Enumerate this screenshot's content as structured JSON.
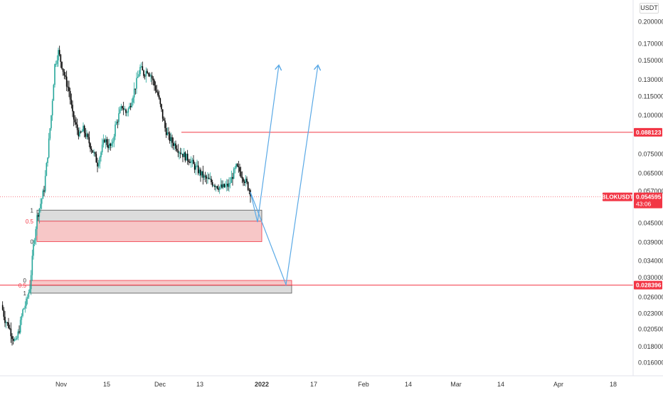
{
  "window": {
    "title": "BLOKUSDT"
  },
  "currency_label": "USDT",
  "symbol_label": "BLOKUSDT",
  "price_tag": {
    "value": "0.054595",
    "countdown": "43:06"
  },
  "level_tags": [
    {
      "value": "0.088123",
      "color": "#f23645"
    },
    {
      "value": "0.028396",
      "color": "#f23645"
    }
  ],
  "colors": {
    "up": "#26a69a",
    "down": "#000000",
    "level": "#f23645",
    "zone_red": "#f7c7c7",
    "zone_gray": "#dcdcdc",
    "arrow": "#5aa9e6"
  },
  "chart_data": {
    "type": "candlestick",
    "scale": "log",
    "y_ticks": [
      "0.200000",
      "0.170000",
      "0.150000",
      "0.130000",
      "0.115000",
      "0.100000",
      "0.075000",
      "0.065000",
      "0.057000",
      "0.045000",
      "0.039000",
      "0.034000",
      "0.030000",
      "0.026000",
      "0.023000",
      "0.020500",
      "0.018000",
      "0.016000"
    ],
    "x_ticks": [
      "Nov",
      "15",
      "Dec",
      "13",
      "2022",
      "17",
      "Feb",
      "14",
      "Mar",
      "14",
      "Apr",
      "18"
    ],
    "ylim": [
      0.0145,
      0.235
    ],
    "horizontal_levels": [
      0.088123,
      0.028396
    ],
    "current_price": 0.054595,
    "zones": [
      {
        "fib_labels": [
          "1",
          "0.5",
          "0"
        ],
        "top": 0.0495,
        "mid": 0.0456,
        "bottom": 0.0392
      },
      {
        "fib_labels": [
          "0",
          "0.5",
          "1"
        ],
        "top": 0.0294,
        "mid": 0.02835,
        "bottom": 0.02675
      }
    ],
    "close_path": [
      [
        0,
        0.0245
      ],
      [
        1,
        0.022
      ],
      [
        2,
        0.021
      ],
      [
        3,
        0.0195
      ],
      [
        4,
        0.0185
      ],
      [
        5,
        0.0205
      ],
      [
        6,
        0.0235
      ],
      [
        7,
        0.025
      ],
      [
        8,
        0.028
      ],
      [
        9,
        0.038
      ],
      [
        10,
        0.047
      ],
      [
        11,
        0.052
      ],
      [
        12,
        0.058
      ],
      [
        13,
        0.075
      ],
      [
        14,
        0.1
      ],
      [
        15,
        0.145
      ],
      [
        16,
        0.16
      ],
      [
        17,
        0.145
      ],
      [
        18,
        0.13
      ],
      [
        19,
        0.12
      ],
      [
        20,
        0.1
      ],
      [
        21,
        0.092
      ],
      [
        22,
        0.086
      ],
      [
        23,
        0.09
      ],
      [
        24,
        0.085
      ],
      [
        25,
        0.08
      ],
      [
        26,
        0.075
      ],
      [
        27,
        0.07
      ],
      [
        28,
        0.076
      ],
      [
        29,
        0.084
      ],
      [
        30,
        0.08
      ],
      [
        31,
        0.079
      ],
      [
        32,
        0.092
      ],
      [
        33,
        0.1
      ],
      [
        34,
        0.107
      ],
      [
        35,
        0.102
      ],
      [
        36,
        0.106
      ],
      [
        37,
        0.117
      ],
      [
        38,
        0.128
      ],
      [
        39,
        0.142
      ],
      [
        40,
        0.136
      ],
      [
        41,
        0.14
      ],
      [
        42,
        0.135
      ],
      [
        43,
        0.125
      ],
      [
        44,
        0.116
      ],
      [
        45,
        0.103
      ],
      [
        46,
        0.091
      ],
      [
        47,
        0.085
      ],
      [
        48,
        0.082
      ],
      [
        49,
        0.08
      ],
      [
        50,
        0.077
      ],
      [
        51,
        0.075
      ],
      [
        52,
        0.073
      ],
      [
        53,
        0.072
      ],
      [
        54,
        0.069
      ],
      [
        55,
        0.067
      ],
      [
        56,
        0.065
      ],
      [
        57,
        0.063
      ],
      [
        58,
        0.062
      ],
      [
        59,
        0.061
      ],
      [
        60,
        0.06
      ],
      [
        61,
        0.059
      ],
      [
        62,
        0.0585
      ],
      [
        63,
        0.059
      ],
      [
        64,
        0.0595
      ],
      [
        65,
        0.064
      ],
      [
        66,
        0.068
      ],
      [
        67,
        0.066
      ],
      [
        68,
        0.063
      ],
      [
        69,
        0.06
      ],
      [
        70,
        0.0566
      ]
    ],
    "projections": [
      {
        "points": [
          [
            70,
            0.0566
          ],
          [
            72,
            0.0453
          ],
          [
            78,
            0.145
          ]
        ]
      },
      {
        "points": [
          [
            70,
            0.0566
          ],
          [
            80,
            0.0285
          ],
          [
            89,
            0.145
          ]
        ]
      }
    ]
  }
}
